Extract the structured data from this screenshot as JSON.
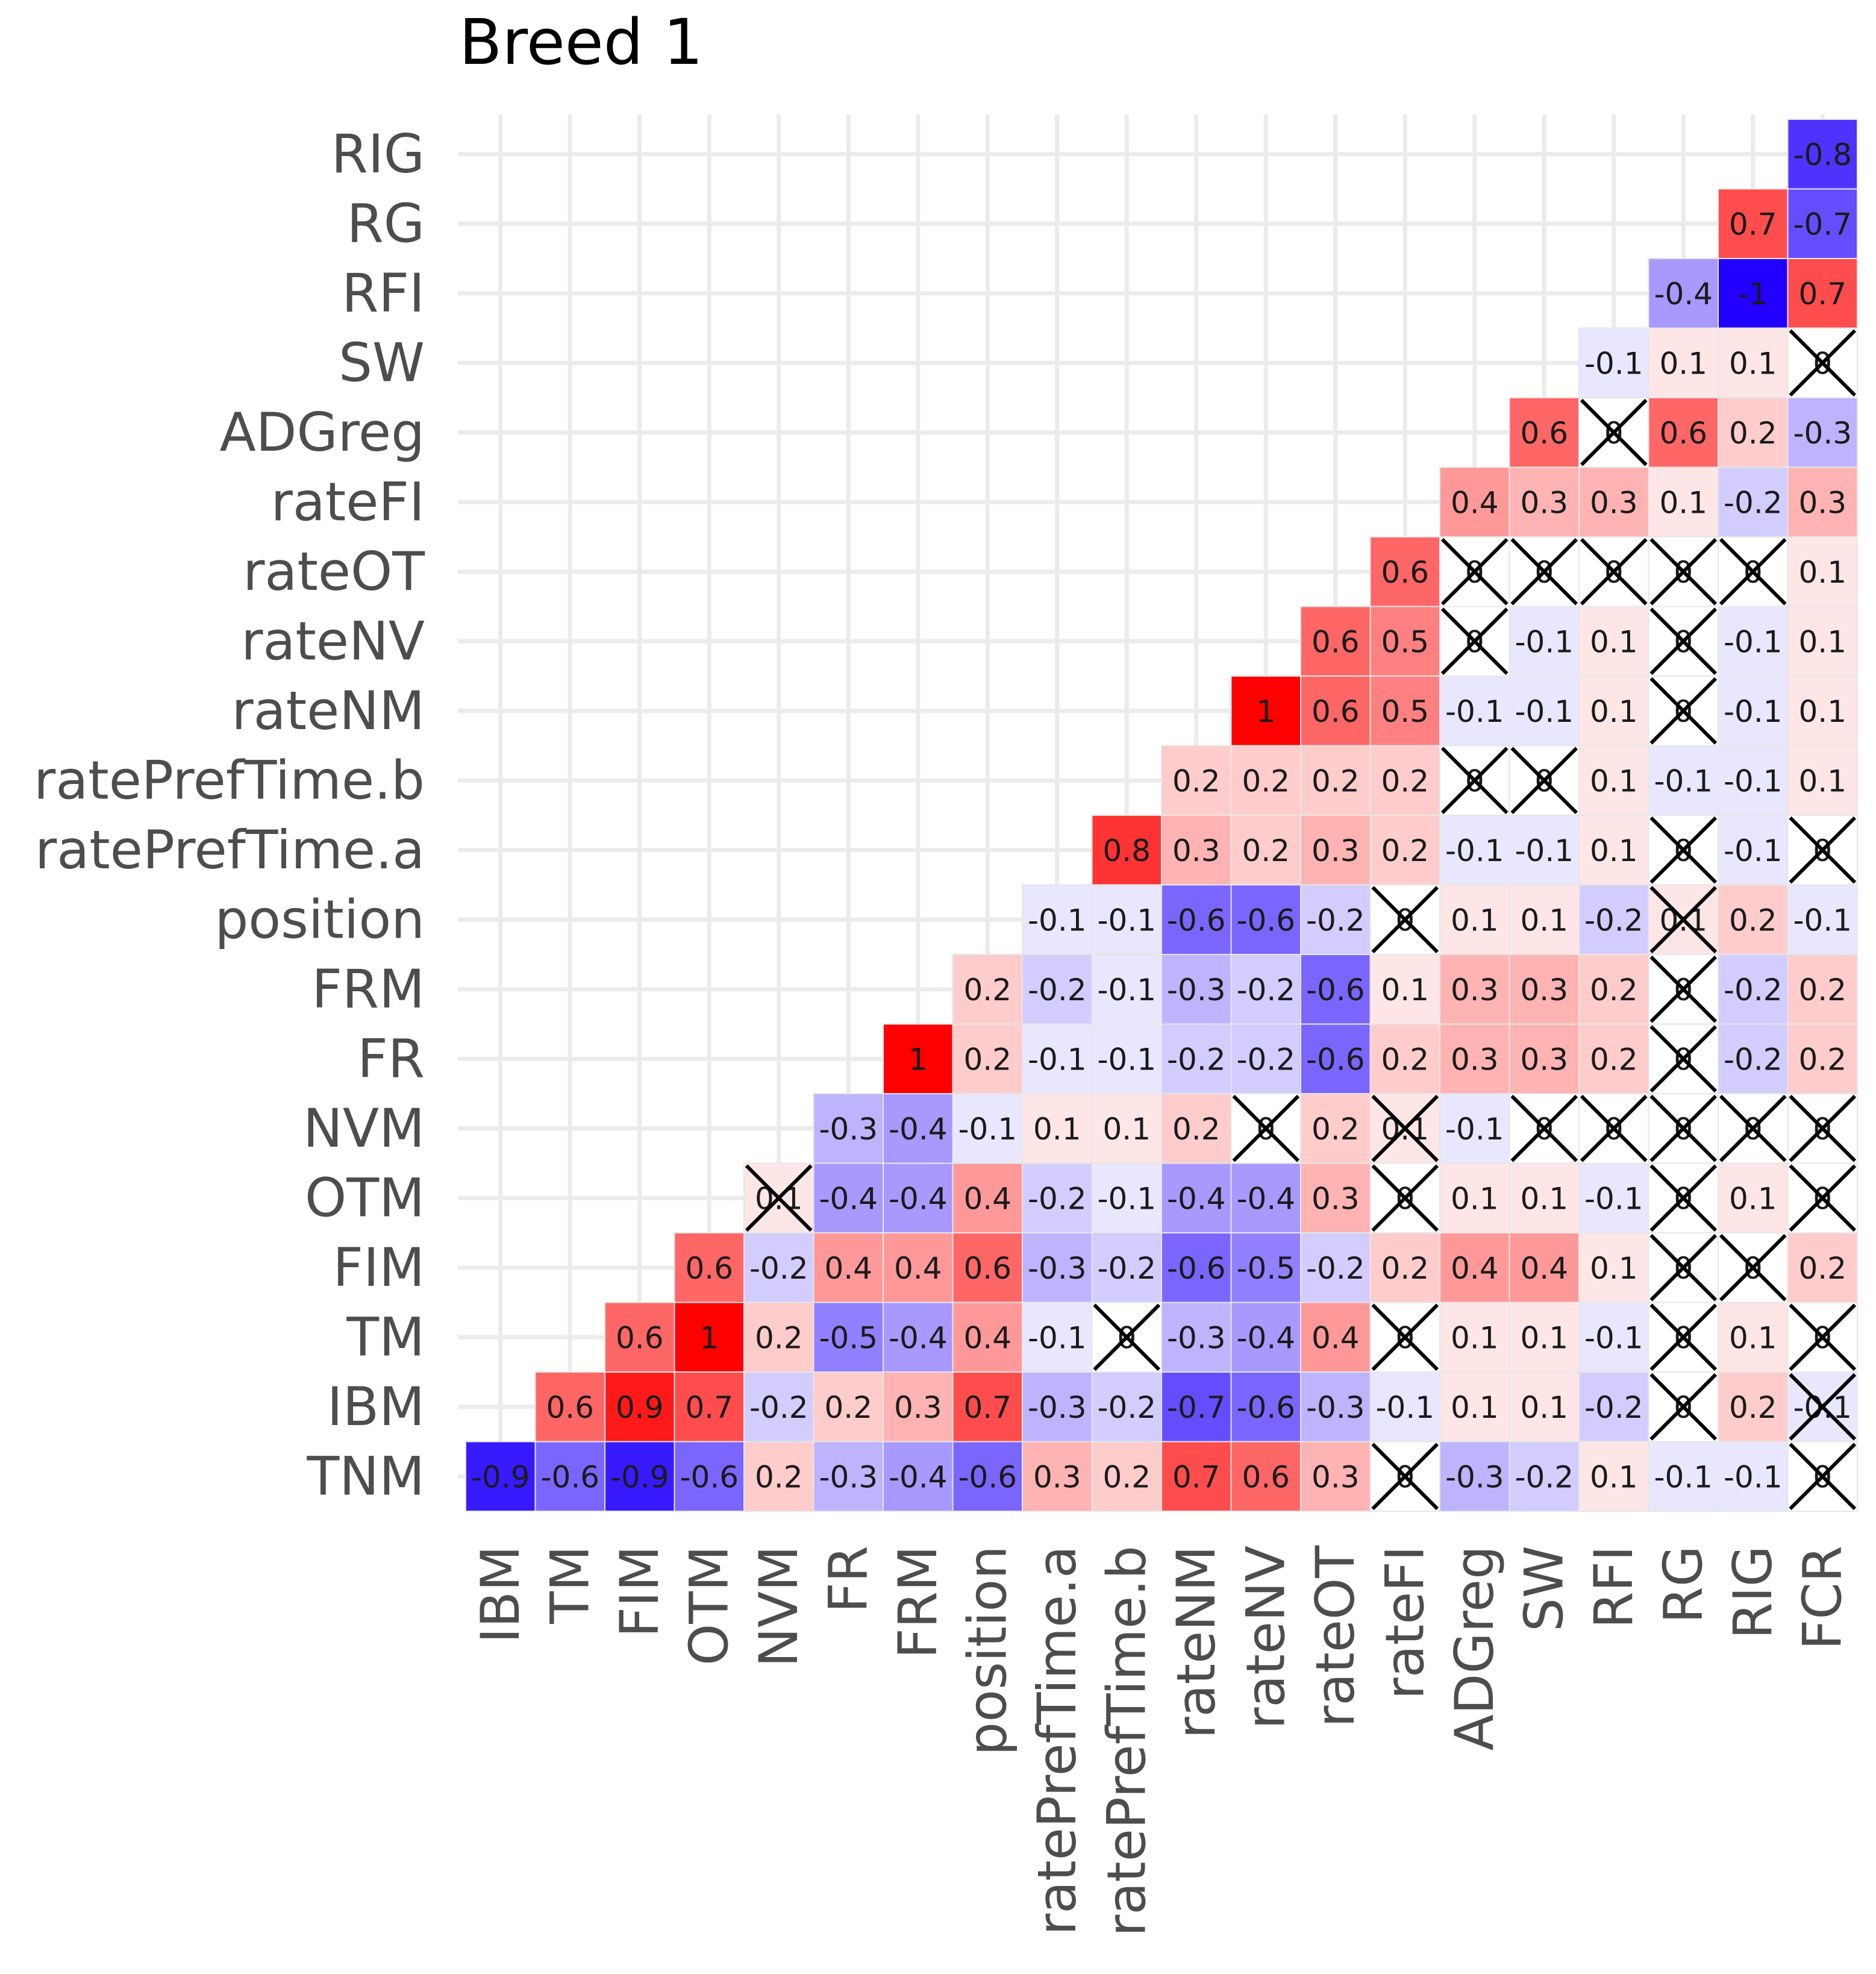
{
  "chart_data": {
    "type": "heatmap",
    "title": "Breed 1",
    "x_labels": [
      "IBM",
      "TM",
      "FIM",
      "OTM",
      "NVM",
      "FR",
      "FRM",
      "position",
      "ratePrefTime.a",
      "ratePrefTime.b",
      "rateNM",
      "rateNV",
      "rateOT",
      "rateFI",
      "ADGreg",
      "SW",
      "RFI",
      "RG",
      "RIG",
      "FCR"
    ],
    "y_labels": [
      "TNM",
      "IBM",
      "TM",
      "FIM",
      "OTM",
      "NVM",
      "FR",
      "FRM",
      "position",
      "ratePrefTime.a",
      "ratePrefTime.b",
      "rateNM",
      "rateNV",
      "rateOT",
      "rateFI",
      "ADGreg",
      "SW",
      "RFI",
      "RG",
      "RIG"
    ],
    "value_range": [
      -1,
      1
    ],
    "colors": {
      "low": "#2200ff",
      "mid": "#ffffff",
      "high": "#ff0000",
      "cross": "#000000",
      "grid": "#ebebeb",
      "cell_border": "#e6e6e6"
    },
    "insignificant_marker": "X",
    "rows": [
      {
        "y": "TNM",
        "values": [
          -0.9,
          -0.6,
          -0.9,
          -0.6,
          0.2,
          -0.3,
          -0.4,
          -0.6,
          0.3,
          0.2,
          0.7,
          0.6,
          0.3,
          0,
          -0.3,
          -0.2,
          0.1,
          -0.1,
          -0.1,
          0
        ],
        "labels": [
          "-0.9",
          "-0.6",
          "-0.9",
          "-0.6",
          "0.2",
          "-0.3",
          "-0.4",
          "-0.6",
          "0.3",
          "0.2",
          "0.7",
          "0.6",
          "0.3",
          "0",
          "-0.3",
          "-0.2",
          "0.1",
          "-0.1",
          "-0.1",
          "0"
        ],
        "crossed": [
          false,
          false,
          false,
          false,
          false,
          false,
          false,
          false,
          false,
          false,
          false,
          false,
          false,
          true,
          false,
          false,
          false,
          false,
          false,
          true
        ]
      },
      {
        "y": "IBM",
        "values": [
          0.6,
          0.9,
          0.7,
          -0.2,
          0.2,
          0.3,
          0.7,
          -0.3,
          -0.2,
          -0.7,
          -0.6,
          -0.3,
          -0.1,
          0.1,
          0.1,
          -0.2,
          0,
          0.2,
          -0.1
        ],
        "labels": [
          "0.6",
          "0.9",
          "0.7",
          "-0.2",
          "0.2",
          "0.3",
          "0.7",
          "-0.3",
          "-0.2",
          "-0.7",
          "-0.6",
          "-0.3",
          "-0.1",
          "0.1",
          "0.1",
          "-0.2",
          "0",
          "0.2",
          "-0.1"
        ],
        "crossed": [
          false,
          false,
          false,
          false,
          false,
          false,
          false,
          false,
          false,
          false,
          false,
          false,
          false,
          false,
          false,
          false,
          true,
          false,
          true
        ]
      },
      {
        "y": "TM",
        "values": [
          0.6,
          1,
          0.2,
          -0.5,
          -0.4,
          0.4,
          -0.1,
          0,
          -0.3,
          -0.4,
          0.4,
          0,
          0.1,
          0.1,
          -0.1,
          0,
          0.1,
          0
        ],
        "labels": [
          "0.6",
          "1",
          "0.2",
          "-0.5",
          "-0.4",
          "0.4",
          "-0.1",
          "0",
          "-0.3",
          "-0.4",
          "0.4",
          "0",
          "0.1",
          "0.1",
          "-0.1",
          "0",
          "0.1",
          "0"
        ],
        "crossed": [
          false,
          false,
          false,
          false,
          false,
          false,
          false,
          true,
          false,
          false,
          false,
          true,
          false,
          false,
          false,
          true,
          false,
          true
        ]
      },
      {
        "y": "FIM",
        "values": [
          0.6,
          -0.2,
          0.4,
          0.4,
          0.6,
          -0.3,
          -0.2,
          -0.6,
          -0.5,
          -0.2,
          0.2,
          0.4,
          0.4,
          0.1,
          0,
          0,
          0.2
        ],
        "labels": [
          "0.6",
          "-0.2",
          "0.4",
          "0.4",
          "0.6",
          "-0.3",
          "-0.2",
          "-0.6",
          "-0.5",
          "-0.2",
          "0.2",
          "0.4",
          "0.4",
          "0.1",
          "0",
          "0",
          "0.2"
        ],
        "crossed": [
          false,
          false,
          false,
          false,
          false,
          false,
          false,
          false,
          false,
          false,
          false,
          false,
          false,
          false,
          true,
          true,
          false
        ]
      },
      {
        "y": "OTM",
        "values": [
          0.1,
          -0.4,
          -0.4,
          0.4,
          -0.2,
          -0.1,
          -0.4,
          -0.4,
          0.3,
          0,
          0.1,
          0.1,
          -0.1,
          0,
          0.1,
          0
        ],
        "labels": [
          "0.1",
          "-0.4",
          "-0.4",
          "0.4",
          "-0.2",
          "-0.1",
          "-0.4",
          "-0.4",
          "0.3",
          "0",
          "0.1",
          "0.1",
          "-0.1",
          "0",
          "0.1",
          "0"
        ],
        "crossed": [
          true,
          false,
          false,
          false,
          false,
          false,
          false,
          false,
          false,
          true,
          false,
          false,
          false,
          true,
          false,
          true
        ]
      },
      {
        "y": "NVM",
        "values": [
          -0.3,
          -0.4,
          -0.1,
          0.1,
          0.1,
          0.2,
          0,
          0.2,
          0.1,
          -0.1,
          0,
          0,
          0,
          0,
          0
        ],
        "labels": [
          "-0.3",
          "-0.4",
          "-0.1",
          "0.1",
          "0.1",
          "0.2",
          "0",
          "0.2",
          "0.1",
          "-0.1",
          "0",
          "0",
          "0",
          "0",
          "0"
        ],
        "crossed": [
          false,
          false,
          false,
          false,
          false,
          false,
          true,
          false,
          true,
          false,
          true,
          true,
          true,
          true,
          true
        ]
      },
      {
        "y": "FR",
        "values": [
          1,
          0.2,
          -0.1,
          -0.1,
          -0.2,
          -0.2,
          -0.6,
          0.2,
          0.3,
          0.3,
          0.2,
          0,
          -0.2,
          0.2
        ],
        "labels": [
          "1",
          "0.2",
          "-0.1",
          "-0.1",
          "-0.2",
          "-0.2",
          "-0.6",
          "0.2",
          "0.3",
          "0.3",
          "0.2",
          "0",
          "-0.2",
          "0.2"
        ],
        "crossed": [
          false,
          false,
          false,
          false,
          false,
          false,
          false,
          false,
          false,
          false,
          false,
          true,
          false,
          false
        ]
      },
      {
        "y": "FRM",
        "values": [
          0.2,
          -0.2,
          -0.1,
          -0.3,
          -0.2,
          -0.6,
          0.1,
          0.3,
          0.3,
          0.2,
          0,
          -0.2,
          0.2
        ],
        "labels": [
          "0.2",
          "-0.2",
          "-0.1",
          "-0.3",
          "-0.2",
          "-0.6",
          "0.1",
          "0.3",
          "0.3",
          "0.2",
          "0",
          "-0.2",
          "0.2"
        ],
        "crossed": [
          false,
          false,
          false,
          false,
          false,
          false,
          false,
          false,
          false,
          false,
          true,
          false,
          false
        ]
      },
      {
        "y": "position",
        "values": [
          -0.1,
          -0.1,
          -0.6,
          -0.6,
          -0.2,
          0,
          0.1,
          0.1,
          -0.2,
          0.1,
          0.2,
          -0.1
        ],
        "labels": [
          "-0.1",
          "-0.1",
          "-0.6",
          "-0.6",
          "-0.2",
          "0",
          "0.1",
          "0.1",
          "-0.2",
          "0.1",
          "0.2",
          "-0.1"
        ],
        "crossed": [
          false,
          false,
          false,
          false,
          false,
          true,
          false,
          false,
          false,
          true,
          false,
          false
        ]
      },
      {
        "y": "ratePrefTime.a",
        "values": [
          0.8,
          0.3,
          0.2,
          0.3,
          0.2,
          -0.1,
          -0.1,
          0.1,
          0,
          -0.1,
          0
        ],
        "labels": [
          "0.8",
          "0.3",
          "0.2",
          "0.3",
          "0.2",
          "-0.1",
          "-0.1",
          "0.1",
          "0",
          "-0.1",
          "0"
        ],
        "crossed": [
          false,
          false,
          false,
          false,
          false,
          false,
          false,
          false,
          true,
          false,
          true
        ]
      },
      {
        "y": "ratePrefTime.b",
        "values": [
          0.2,
          0.2,
          0.2,
          0.2,
          0,
          0,
          0.1,
          -0.1,
          -0.1,
          0.1
        ],
        "labels": [
          "0.2",
          "0.2",
          "0.2",
          "0.2",
          "0",
          "0",
          "0.1",
          "-0.1",
          "-0.1",
          "0.1"
        ],
        "crossed": [
          false,
          false,
          false,
          false,
          true,
          true,
          false,
          false,
          false,
          false
        ]
      },
      {
        "y": "rateNM",
        "values": [
          1,
          0.6,
          0.5,
          -0.1,
          -0.1,
          0.1,
          0,
          -0.1,
          0.1
        ],
        "labels": [
          "1",
          "0.6",
          "0.5",
          "-0.1",
          "-0.1",
          "0.1",
          "0",
          "-0.1",
          "0.1"
        ],
        "crossed": [
          false,
          false,
          false,
          false,
          false,
          false,
          true,
          false,
          false
        ]
      },
      {
        "y": "rateNV",
        "values": [
          0.6,
          0.5,
          0,
          -0.1,
          0.1,
          0,
          -0.1,
          0.1
        ],
        "labels": [
          "0.6",
          "0.5",
          "0",
          "-0.1",
          "0.1",
          "0",
          "-0.1",
          "0.1"
        ],
        "crossed": [
          false,
          false,
          true,
          false,
          false,
          true,
          false,
          false
        ]
      },
      {
        "y": "rateOT",
        "values": [
          0.6,
          0,
          0,
          0,
          0,
          0,
          0.1
        ],
        "labels": [
          "0.6",
          "0",
          "0",
          "0",
          "0",
          "0",
          "0.1"
        ],
        "crossed": [
          false,
          true,
          true,
          true,
          true,
          true,
          false
        ]
      },
      {
        "y": "rateFI",
        "values": [
          0.4,
          0.3,
          0.3,
          0.1,
          -0.2,
          0.3
        ],
        "labels": [
          "0.4",
          "0.3",
          "0.3",
          "0.1",
          "-0.2",
          "0.3"
        ],
        "crossed": [
          false,
          false,
          false,
          false,
          false,
          false
        ]
      },
      {
        "y": "ADGreg",
        "values": [
          0.6,
          0,
          0.6,
          0.2,
          -0.3
        ],
        "labels": [
          "0.6",
          "0",
          "0.6",
          "0.2",
          "-0.3"
        ],
        "crossed": [
          false,
          true,
          false,
          false,
          false
        ]
      },
      {
        "y": "SW",
        "values": [
          -0.1,
          0.1,
          0.1,
          0
        ],
        "labels": [
          "-0.1",
          "0.1",
          "0.1",
          "0"
        ],
        "crossed": [
          false,
          false,
          false,
          true
        ]
      },
      {
        "y": "RFI",
        "values": [
          -0.4,
          -1,
          0.7
        ],
        "labels": [
          "-0.4",
          "-1",
          "0.7"
        ],
        "crossed": [
          false,
          false,
          false
        ]
      },
      {
        "y": "RG",
        "values": [
          0.7,
          -0.7
        ],
        "labels": [
          "0.7",
          "-0.7"
        ],
        "crossed": [
          false,
          false
        ]
      },
      {
        "y": "RIG",
        "values": [
          -0.8
        ],
        "labels": [
          "-0.8"
        ],
        "crossed": [
          false
        ]
      }
    ]
  }
}
